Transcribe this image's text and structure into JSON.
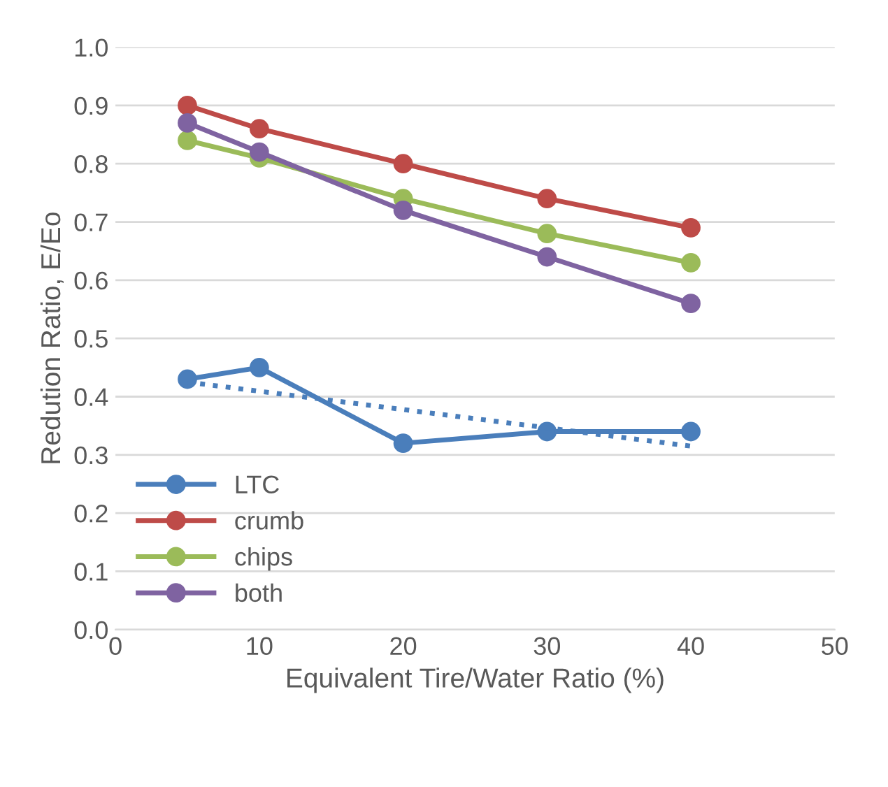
{
  "chart_data": {
    "type": "line",
    "xlabel": "Equivalent Tire/Water Ratio (%)",
    "ylabel": "Redution Ratio, E/Eo",
    "x": [
      5,
      10,
      20,
      30,
      40
    ],
    "series": [
      {
        "name": "LTC",
        "color": "#4a7ebb",
        "values": [
          0.43,
          0.45,
          0.32,
          0.34,
          0.34
        ]
      },
      {
        "name": "crumb",
        "color": "#be4b48",
        "values": [
          0.9,
          0.86,
          0.8,
          0.74,
          0.69
        ]
      },
      {
        "name": "chips",
        "color": "#9bbb59",
        "values": [
          0.84,
          0.81,
          0.74,
          0.68,
          0.63
        ]
      },
      {
        "name": "both",
        "color": "#7f63a1",
        "values": [
          0.87,
          0.82,
          0.72,
          0.64,
          0.56
        ]
      },
      {
        "color": "#4a7ebb",
        "x": [
          5,
          40
        ],
        "values": [
          0.425,
          0.315
        ],
        "marker": "none",
        "line_style": "dotted"
      }
    ],
    "marker": "circle",
    "line_style": "solid",
    "xlim": [
      0,
      50
    ],
    "xticks": [
      0,
      10,
      20,
      30,
      40,
      50
    ],
    "ylim": [
      0,
      1
    ],
    "yticks": [
      {
        "value": 0,
        "label": "0.0"
      },
      {
        "value": 0.1,
        "label": "0.1"
      },
      {
        "value": 0.2,
        "label": "0.2"
      },
      {
        "value": 0.3,
        "label": "0.3"
      },
      {
        "value": 0.4,
        "label": "0.4"
      },
      {
        "value": 0.5,
        "label": "0.5"
      },
      {
        "value": 0.6,
        "label": "0.6"
      },
      {
        "value": 0.7,
        "label": "0.7"
      },
      {
        "value": 0.8,
        "label": "0.8"
      },
      {
        "value": 0.9,
        "label": "0.9"
      },
      {
        "value": 1,
        "label": "1.0"
      }
    ],
    "grid": "y",
    "legend": "bottom left"
  }
}
